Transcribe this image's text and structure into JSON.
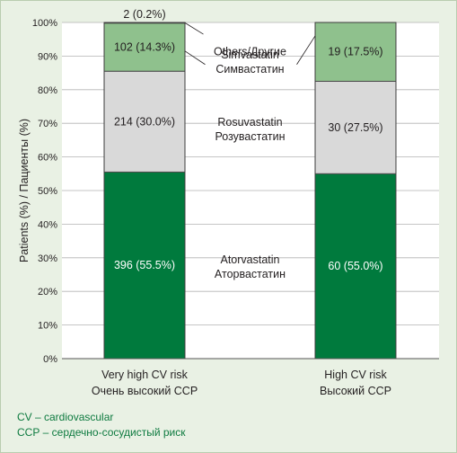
{
  "chart_data": {
    "type": "bar",
    "stacked": true,
    "ylabel": "Patients (%) / Пациенты (%)",
    "ylim": [
      0,
      100
    ],
    "yticks": [
      "0%",
      "10%",
      "20%",
      "30%",
      "40%",
      "50%",
      "60%",
      "70%",
      "80%",
      "90%",
      "100%"
    ],
    "grid": true,
    "categories": [
      {
        "line1": "Very high CV risk",
        "line2": "Очень высокий ССР"
      },
      {
        "line1": "High CV risk",
        "line2": "Высокий ССР"
      }
    ],
    "series": [
      {
        "name": "Atorvastatin / Аторвастатин",
        "color": "#007a3d",
        "text_color": "#ffffff",
        "values": [
          55.5,
          55.0
        ],
        "labels": [
          "396 (55.5%)",
          "60 (55.0%)"
        ]
      },
      {
        "name": "Rosuvastatin / Розувастатин",
        "color": "#d9d9d9",
        "text_color": "#231f20",
        "values": [
          30.0,
          27.5
        ],
        "labels": [
          "214 (30.0%)",
          "30 (27.5%)"
        ]
      },
      {
        "name": "Simvastatin / Симвастатин",
        "color": "#8fc18d",
        "text_color": "#231f20",
        "values": [
          14.3,
          17.5
        ],
        "labels": [
          "102 (14.3%)",
          "19 (17.5%)"
        ]
      },
      {
        "name": "Others / Другие",
        "color": "#ffffff",
        "text_color": "#231f20",
        "values": [
          0.2,
          0
        ],
        "labels": [
          "2 (0.2%)",
          ""
        ]
      }
    ],
    "annotations": [
      {
        "line1": "Others/Другие",
        "line2": ""
      },
      {
        "line1": "Simvastatin",
        "line2": "Симвастатин"
      },
      {
        "line1": "Rosuvastatin",
        "line2": "Розувастатин"
      },
      {
        "line1": "Atorvastatin",
        "line2": "Аторвастатин"
      }
    ]
  },
  "footnotes": {
    "cv": "CV – cardiovascular",
    "ccr": "ССР – сердечно-сосудистый риск"
  }
}
